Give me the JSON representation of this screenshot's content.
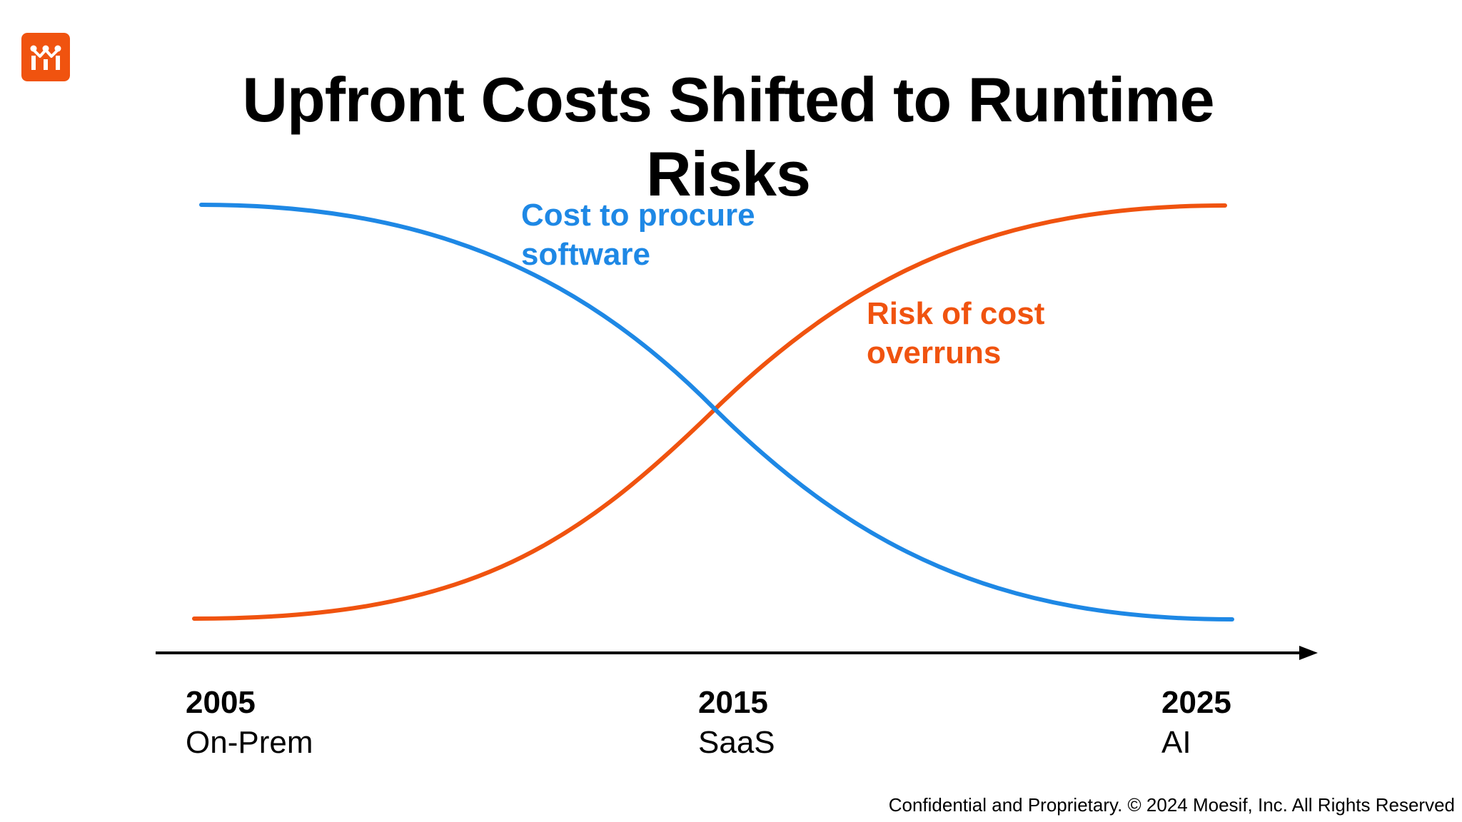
{
  "title": "Upfront Costs Shifted to Runtime Risks",
  "logo": {
    "icon": "moesif-logo-icon",
    "color": "#f0530f"
  },
  "curves": {
    "cost": {
      "label_line1": "Cost to procure",
      "label_line2": "software",
      "color": "#1e88e5"
    },
    "risk": {
      "label_line1": "Risk of cost",
      "label_line2": "overruns",
      "color": "#f0530f"
    }
  },
  "timeline": [
    {
      "year": "2005",
      "name": "On-Prem"
    },
    {
      "year": "2015",
      "name": "SaaS"
    },
    {
      "year": "2025",
      "name": "AI"
    }
  ],
  "footer": "Confidential and Proprietary. © 2024 Moesif, Inc. All Rights Reserved"
}
